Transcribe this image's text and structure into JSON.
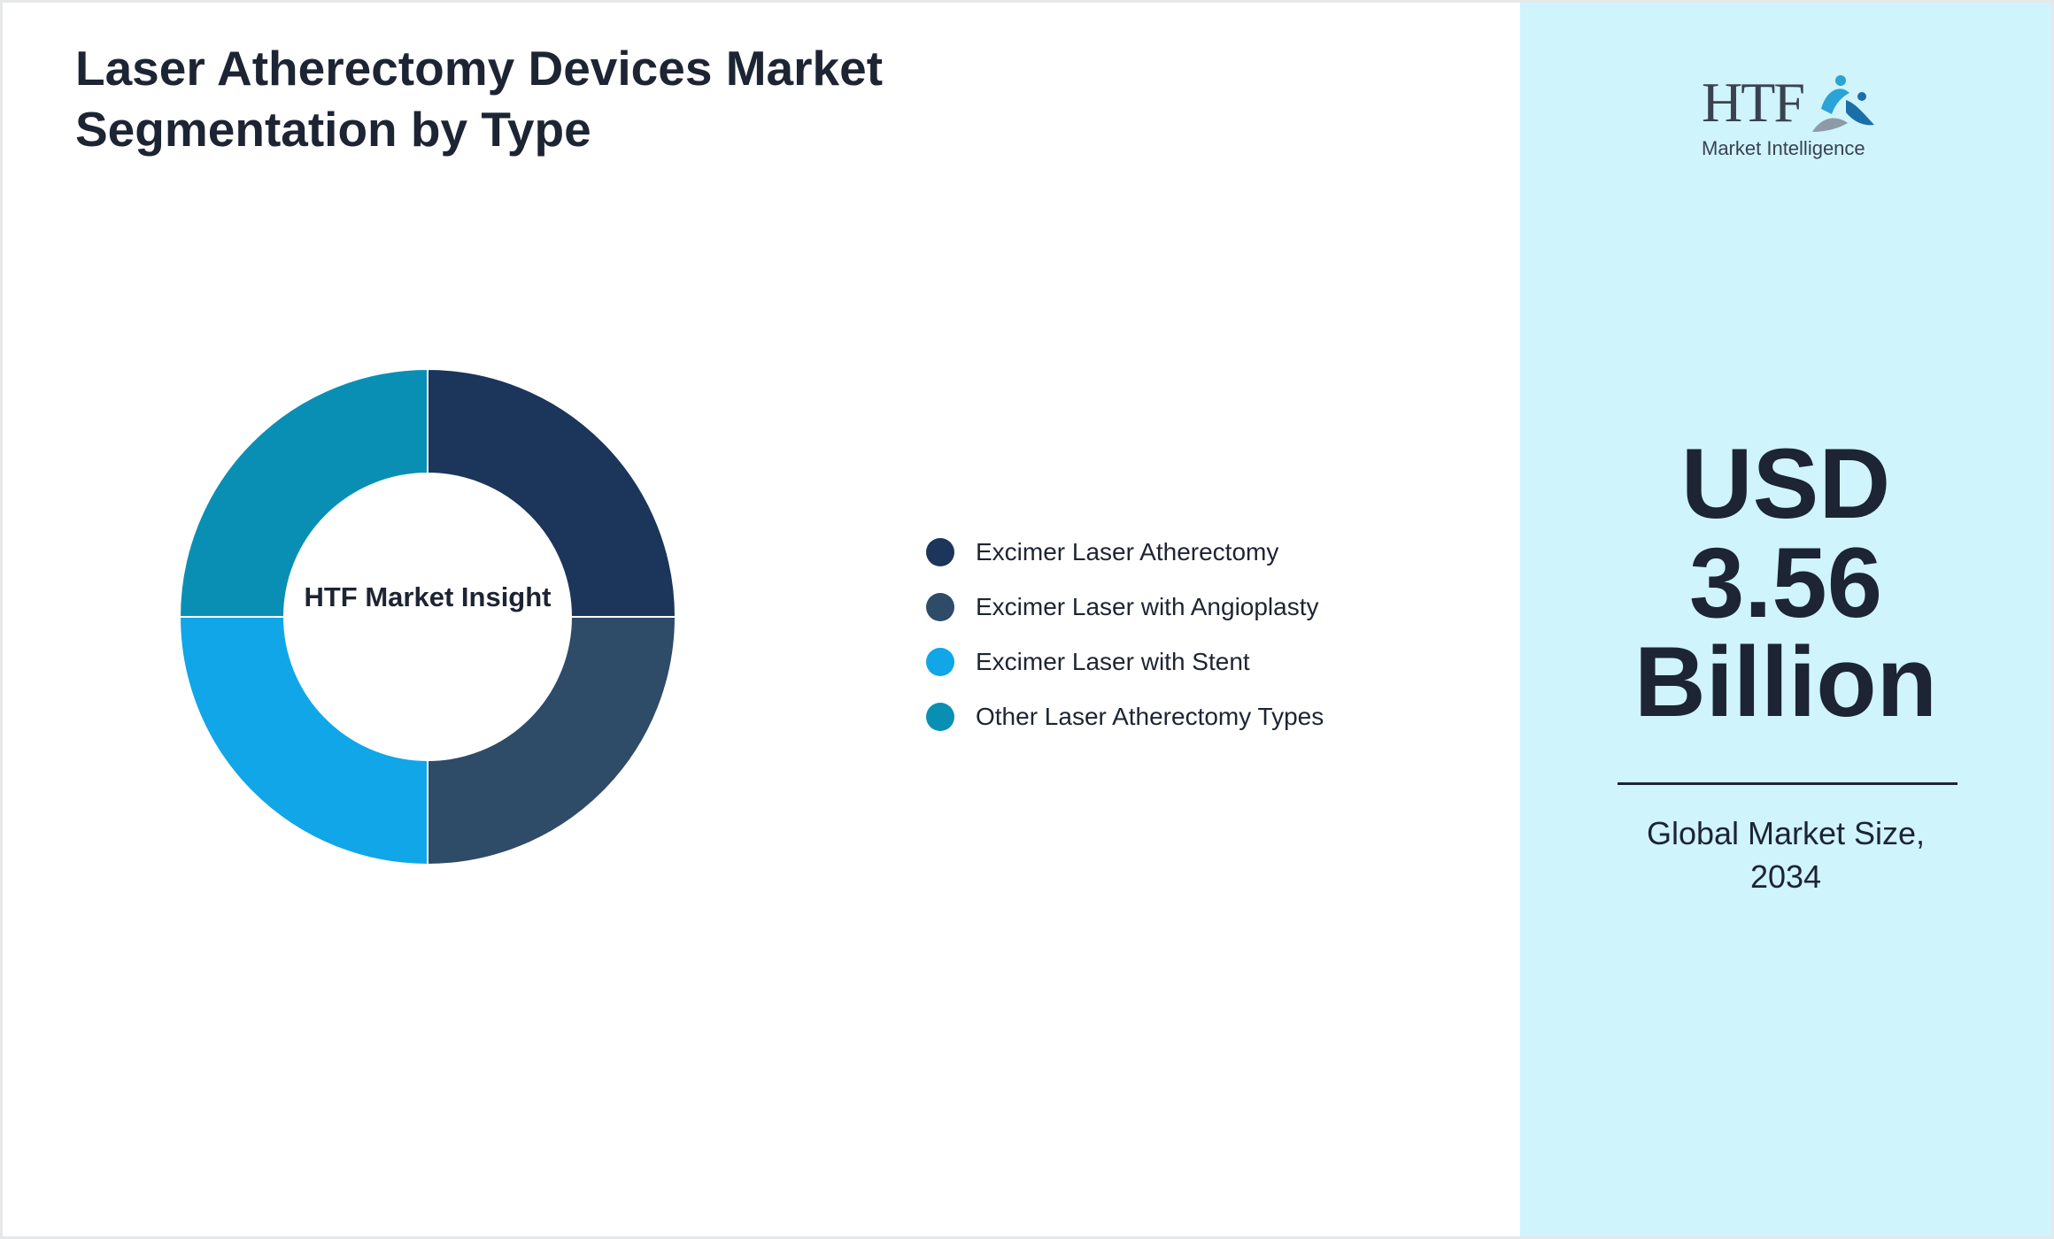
{
  "title": "Laser Atherectomy Devices Market Segmentation by Type",
  "center_label": "HTF Market Insight",
  "chart_data": {
    "type": "pie",
    "title": "Laser Atherectomy Devices Market Segmentation by Type",
    "categories": [
      "Excimer Laser Atherectomy",
      "Excimer Laser with Angioplasty",
      "Excimer Laser with Stent",
      "Other Laser Atherectomy Types"
    ],
    "values": [
      25,
      25,
      25,
      25
    ],
    "colors": [
      "#1b355b",
      "#2e4b68",
      "#10a6e8",
      "#0a8fb4"
    ],
    "donut": true,
    "legend_position": "right"
  },
  "sidebar": {
    "logo_text": "HTF",
    "logo_subtext": "Market Intelligence",
    "value_lines": [
      "USD",
      "3.56",
      "Billion"
    ],
    "caption_lines": [
      "Global Market Size,",
      "2034"
    ]
  },
  "colors": {
    "sidebar_background": "#cff4fb",
    "text": "#1d2433"
  }
}
